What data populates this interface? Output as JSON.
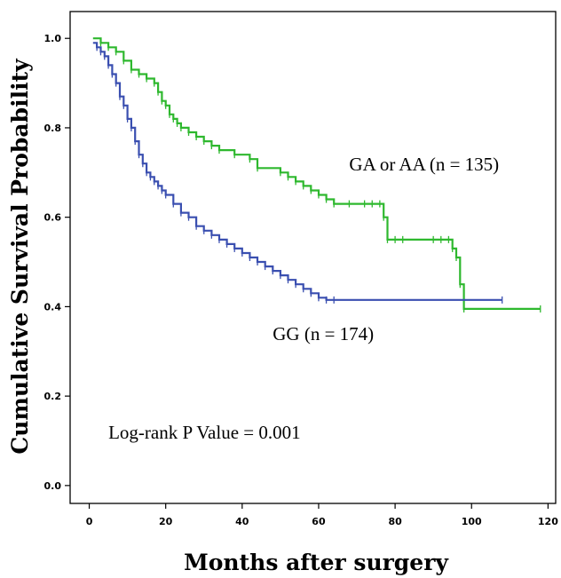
{
  "chart_data": {
    "type": "line",
    "xlabel": "Months after surgery",
    "ylabel": "Cumulative Survival Probability",
    "xlim": [
      -5,
      122
    ],
    "ylim": [
      -0.04,
      1.06
    ],
    "xticks": [
      0,
      20,
      40,
      60,
      80,
      100,
      120
    ],
    "yticks": [
      0.0,
      0.2,
      0.4,
      0.6,
      0.8,
      1.0
    ],
    "ytick_labels": [
      "0.0",
      "0.2",
      "0.4",
      "0.6",
      "0.8",
      "1.0"
    ],
    "grid": false,
    "legend": "none",
    "series": [
      {
        "name": "GA or AA (n = 135)",
        "color": "#2eb82e",
        "x": [
          1,
          3,
          5,
          7,
          9,
          11,
          13,
          15,
          17,
          18,
          19,
          20,
          21,
          22,
          23,
          24,
          26,
          28,
          30,
          32,
          34,
          38,
          42,
          44,
          50,
          52,
          54,
          56,
          58,
          60,
          62,
          64,
          68,
          72,
          74,
          76,
          77,
          78,
          80,
          82,
          90,
          92,
          94,
          95,
          96,
          97,
          98,
          118
        ],
        "y": [
          1.0,
          0.99,
          0.98,
          0.97,
          0.95,
          0.93,
          0.92,
          0.91,
          0.9,
          0.88,
          0.86,
          0.85,
          0.83,
          0.82,
          0.81,
          0.8,
          0.79,
          0.78,
          0.77,
          0.76,
          0.75,
          0.74,
          0.73,
          0.71,
          0.7,
          0.69,
          0.68,
          0.67,
          0.66,
          0.65,
          0.64,
          0.63,
          0.63,
          0.63,
          0.63,
          0.63,
          0.6,
          0.55,
          0.55,
          0.55,
          0.55,
          0.55,
          0.55,
          0.53,
          0.51,
          0.45,
          0.395,
          0.395
        ]
      },
      {
        "name": "GG (n = 174)",
        "color": "#3a4fb0",
        "x": [
          1,
          2,
          3,
          4,
          5,
          6,
          7,
          8,
          9,
          10,
          11,
          12,
          13,
          14,
          15,
          16,
          17,
          18,
          19,
          20,
          22,
          24,
          26,
          28,
          30,
          32,
          34,
          36,
          38,
          40,
          42,
          44,
          46,
          48,
          50,
          52,
          54,
          56,
          58,
          60,
          62,
          64,
          108
        ],
        "y": [
          0.99,
          0.98,
          0.97,
          0.96,
          0.94,
          0.92,
          0.9,
          0.87,
          0.85,
          0.82,
          0.8,
          0.77,
          0.74,
          0.72,
          0.7,
          0.69,
          0.68,
          0.67,
          0.66,
          0.65,
          0.63,
          0.61,
          0.6,
          0.58,
          0.57,
          0.56,
          0.55,
          0.54,
          0.53,
          0.52,
          0.51,
          0.5,
          0.49,
          0.48,
          0.47,
          0.46,
          0.45,
          0.44,
          0.43,
          0.42,
          0.415,
          0.415,
          0.415
        ]
      }
    ],
    "annotations": [
      {
        "text": "GA or AA (n = 135)",
        "x": 68,
        "y": 0.705
      },
      {
        "text": "GG (n = 174)",
        "x": 48,
        "y": 0.325
      },
      {
        "text": "Log-rank P Value = 0.001",
        "x": 5,
        "y": 0.105
      }
    ]
  }
}
